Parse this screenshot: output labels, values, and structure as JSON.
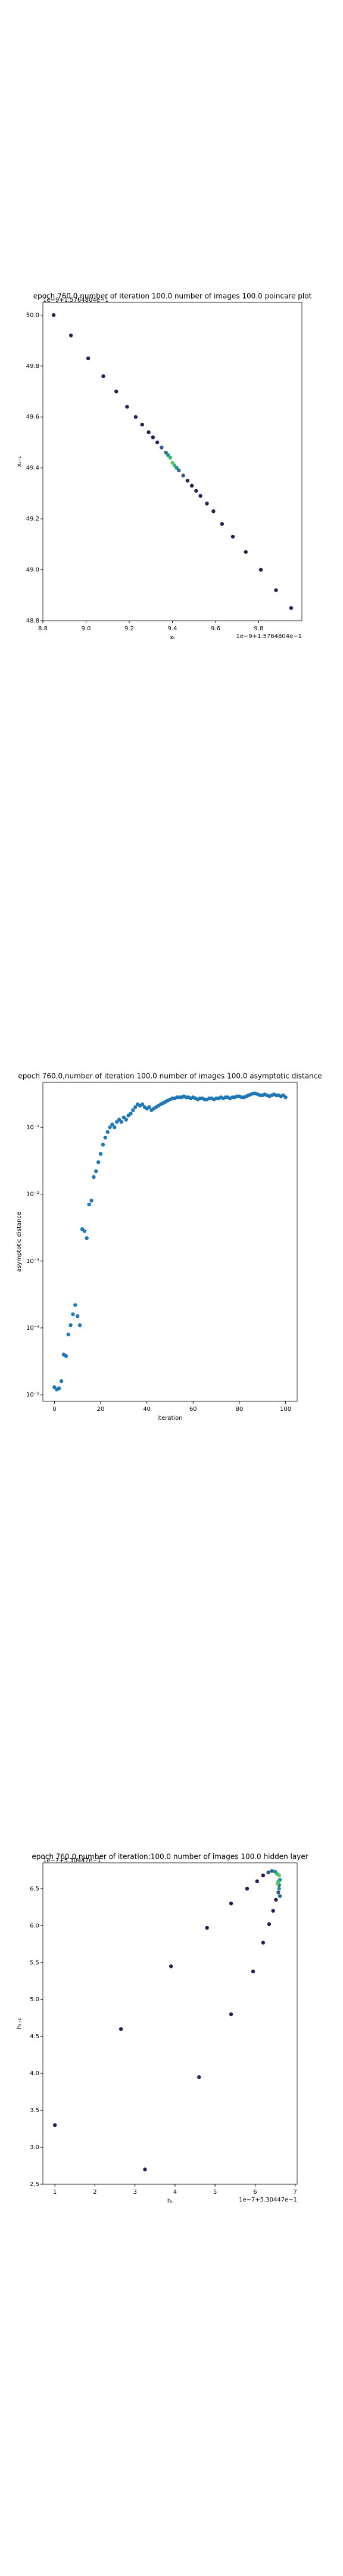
{
  "chart_data": [
    {
      "type": "scatter",
      "title": "epoch 760.0,number of iteration 100.0 number of images 100.0 poincare plot",
      "xlabel": "xₜ",
      "ylabel": "xₜ₊₁",
      "x_offset_label": "1e−9+1.5764804e−1",
      "y_offset_label": "1e−9+1.5764804e−1",
      "xlim": [
        8.8,
        10.0
      ],
      "ylim": [
        48.8,
        50.05
      ],
      "xticks": [
        {
          "value": 8.8,
          "label": "8.8"
        },
        {
          "value": 9.0,
          "label": "9.0"
        },
        {
          "value": 9.2,
          "label": "9.2"
        },
        {
          "value": 9.4,
          "label": "9.4"
        },
        {
          "value": 9.6,
          "label": "9.6"
        },
        {
          "value": 9.8,
          "label": "9.8"
        }
      ],
      "yticks": [
        {
          "value": 48.8,
          "label": "48.8"
        },
        {
          "value": 49.0,
          "label": "49.0"
        },
        {
          "value": 49.2,
          "label": "49.2"
        },
        {
          "value": 49.4,
          "label": "49.4"
        },
        {
          "value": 49.6,
          "label": "49.6"
        },
        {
          "value": 49.8,
          "label": "49.8"
        },
        {
          "value": 50.0,
          "label": "50.0"
        }
      ],
      "x": [
        8.85,
        8.93,
        9.01,
        9.08,
        9.14,
        9.19,
        9.23,
        9.26,
        9.29,
        9.31,
        9.33,
        9.35,
        9.37,
        9.38,
        9.39,
        9.4,
        9.41,
        9.42,
        9.43,
        9.45,
        9.47,
        9.49,
        9.51,
        9.53,
        9.56,
        9.59,
        9.63,
        9.68,
        9.74,
        9.81,
        9.88,
        9.95
      ],
      "y": [
        50.0,
        49.92,
        49.83,
        49.76,
        49.7,
        49.64,
        49.6,
        49.57,
        49.54,
        49.52,
        49.5,
        49.48,
        49.46,
        49.45,
        49.44,
        49.42,
        49.41,
        49.4,
        49.39,
        49.37,
        49.35,
        49.33,
        49.31,
        49.29,
        49.26,
        49.23,
        49.18,
        49.13,
        49.07,
        49.0,
        48.92,
        48.85
      ],
      "colors": [
        "#2d1b4e",
        "#2d1b4e",
        "#2d1b4e",
        "#2d1b4e",
        "#2d1b4e",
        "#2d1b4e",
        "#2d1b4e",
        "#2d1b4e",
        "#2d1b4e",
        "#2d1b4e",
        "#2d1b4e",
        "#3b528b",
        "#31688e",
        "#21918c",
        "#35b779",
        "#5ec962",
        "#35b779",
        "#21918c",
        "#31688e",
        "#3b528b",
        "#2d1b4e",
        "#2d1b4e",
        "#2d1b4e",
        "#2d1b4e",
        "#2d1b4e",
        "#2d1b4e",
        "#2d1b4e",
        "#2d1b4e",
        "#2d1b4e",
        "#2d1b4e",
        "#2d1b4e",
        "#2d1b4e"
      ]
    },
    {
      "type": "scatter",
      "title": "epoch 760.0,number of iteration 100.0  number of images 100.0 asymptotic distance",
      "xlabel": "iteration",
      "ylabel": "asymptotic distance",
      "yscale": "log",
      "color": "#1f77b4",
      "xlim": [
        -5,
        105
      ],
      "ylim": [
        8e-06,
        0.47
      ],
      "xticks": [
        0,
        20,
        40,
        60,
        80,
        100
      ],
      "yticks": [
        {
          "value": 0.1,
          "label": "10⁻¹"
        },
        {
          "value": 0.01,
          "label": "10⁻²"
        },
        {
          "value": 0.001,
          "label": "10⁻³"
        },
        {
          "value": 0.0001,
          "label": "10⁻⁴"
        },
        {
          "value": 1e-05,
          "label": "10⁻⁵"
        }
      ],
      "x": [
        0,
        1,
        2,
        3,
        4,
        5,
        6,
        7,
        8,
        9,
        10,
        11,
        12,
        13,
        14,
        15,
        16,
        17,
        18,
        19,
        20,
        21,
        22,
        23,
        24,
        25,
        26,
        27,
        28,
        29,
        30,
        31,
        32,
        33,
        34,
        35,
        36,
        37,
        38,
        39,
        40,
        41,
        42,
        43,
        44,
        45,
        46,
        47,
        48,
        49,
        50,
        51,
        52,
        53,
        54,
        55,
        56,
        57,
        58,
        59,
        60,
        61,
        62,
        63,
        64,
        65,
        66,
        67,
        68,
        69,
        70,
        71,
        72,
        73,
        74,
        75,
        76,
        77,
        78,
        79,
        80,
        81,
        82,
        83,
        84,
        85,
        86,
        87,
        88,
        89,
        90,
        91,
        92,
        93,
        94,
        95,
        96,
        97,
        98,
        99,
        100
      ],
      "y": [
        1.3e-05,
        1.2e-05,
        1.25e-05,
        1.6e-05,
        4e-05,
        3.8e-05,
        8e-05,
        0.00011,
        0.00016,
        0.00022,
        0.00015,
        0.00011,
        0.003,
        0.0028,
        0.0022,
        0.007,
        0.008,
        0.018,
        0.022,
        0.03,
        0.04,
        0.055,
        0.07,
        0.085,
        0.1,
        0.11,
        0.1,
        0.12,
        0.13,
        0.12,
        0.14,
        0.13,
        0.15,
        0.16,
        0.18,
        0.2,
        0.22,
        0.21,
        0.22,
        0.2,
        0.19,
        0.2,
        0.18,
        0.19,
        0.2,
        0.21,
        0.22,
        0.23,
        0.24,
        0.25,
        0.26,
        0.27,
        0.27,
        0.28,
        0.28,
        0.28,
        0.29,
        0.28,
        0.28,
        0.27,
        0.28,
        0.27,
        0.26,
        0.27,
        0.27,
        0.26,
        0.26,
        0.27,
        0.27,
        0.26,
        0.27,
        0.27,
        0.28,
        0.27,
        0.28,
        0.28,
        0.27,
        0.28,
        0.28,
        0.29,
        0.29,
        0.28,
        0.28,
        0.29,
        0.3,
        0.31,
        0.32,
        0.32,
        0.31,
        0.3,
        0.3,
        0.31,
        0.3,
        0.29,
        0.3,
        0.31,
        0.3,
        0.3,
        0.29,
        0.3,
        0.28
      ]
    },
    {
      "type": "scatter",
      "title": "epoch 760.0,number of iteration:100.0  number of images 100.0 hidden layer",
      "xlabel": "hₜ",
      "ylabel": "hₜ₊₁",
      "x_offset_label": "1e−7+5.30447e−1",
      "y_offset_label": "1e−7+5.30447e−1",
      "xlim": [
        0.7,
        7.05
      ],
      "ylim": [
        2.5,
        6.85
      ],
      "xticks": [
        1,
        2,
        3,
        4,
        5,
        6,
        7
      ],
      "yticks": [
        {
          "value": 2.5,
          "label": "2.5"
        },
        {
          "value": 3.0,
          "label": "3.0"
        },
        {
          "value": 3.5,
          "label": "3.5"
        },
        {
          "value": 4.0,
          "label": "4.0"
        },
        {
          "value": 4.5,
          "label": "4.5"
        },
        {
          "value": 5.0,
          "label": "5.0"
        },
        {
          "value": 5.5,
          "label": "5.5"
        },
        {
          "value": 6.0,
          "label": "6.0"
        },
        {
          "value": 6.5,
          "label": "6.5"
        }
      ],
      "x": [
        1.0,
        3.25,
        2.65,
        4.6,
        3.9,
        5.4,
        4.8,
        5.95,
        5.4,
        6.2,
        5.8,
        6.35,
        6.05,
        6.45,
        6.2,
        6.52,
        6.33,
        6.58,
        6.42,
        6.6,
        6.5,
        6.62,
        6.55,
        6.6,
        6.58,
        6.6,
        6.56,
        6.62
      ],
      "y": [
        3.3,
        2.7,
        4.6,
        3.95,
        5.45,
        4.8,
        5.97,
        5.38,
        6.3,
        5.77,
        6.5,
        6.02,
        6.6,
        6.2,
        6.68,
        6.35,
        6.72,
        6.45,
        6.74,
        6.55,
        6.73,
        6.62,
        6.7,
        6.68,
        6.6,
        6.5,
        6.57,
        6.4
      ],
      "colors": [
        "#2d1b4e",
        "#2d1b4e",
        "#2d1b4e",
        "#2d1b4e",
        "#2d1b4e",
        "#2d1b4e",
        "#2d1b4e",
        "#2d1b4e",
        "#2d1b4e",
        "#2d1b4e",
        "#2d1b4e",
        "#2d1b4e",
        "#2d1b4e",
        "#2d1b4e",
        "#2d1b4e",
        "#2d1b4e",
        "#3b528b",
        "#3b528b",
        "#31688e",
        "#31688e",
        "#21918c",
        "#21918c",
        "#35b779",
        "#5ec962",
        "#35b779",
        "#21918c",
        "#5ec962",
        "#31688e"
      ]
    }
  ]
}
